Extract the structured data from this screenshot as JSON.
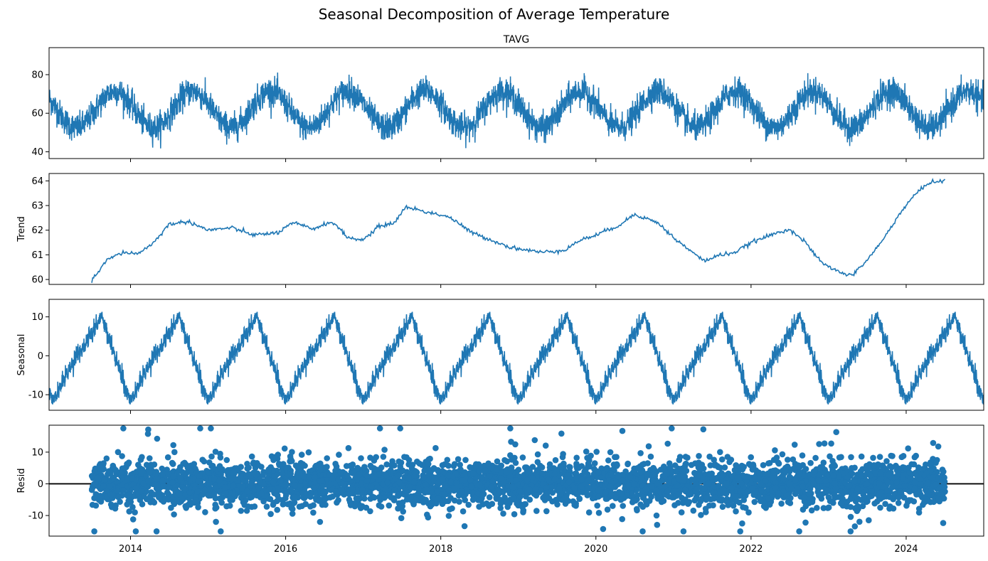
{
  "figure": {
    "suptitle": "Seasonal Decomposition of Average Temperature"
  },
  "chart_data": [
    {
      "type": "line",
      "title": "TAVG",
      "xlabel": "",
      "ylabel": "",
      "xlim": [
        2012.95,
        2025.0
      ],
      "ylim": [
        36.5,
        94
      ],
      "yticks": [
        40,
        60,
        80
      ],
      "xticks": [
        2014,
        2016,
        2018,
        2020,
        2022,
        2024
      ],
      "series": [
        {
          "color": "#1f77b4",
          "kind": "seasonal_daily",
          "x_start": 2012.95,
          "x_end": 2025.0,
          "mean": 62,
          "amplitude": 9.5,
          "noise": 6.5
        }
      ]
    },
    {
      "type": "line",
      "title": "",
      "xlabel": "",
      "ylabel": "Trend",
      "xlim": [
        2012.95,
        2025.0
      ],
      "ylim": [
        59.8,
        64.3
      ],
      "yticks": [
        60,
        61,
        62,
        63,
        64
      ],
      "xticks": [
        2014,
        2016,
        2018,
        2020,
        2022,
        2024
      ],
      "series": [
        {
          "color": "#1f77b4",
          "x": [
            2013.5,
            2013.7,
            2013.9,
            2014.1,
            2014.3,
            2014.5,
            2014.75,
            2015.0,
            2015.3,
            2015.6,
            2015.9,
            2016.1,
            2016.35,
            2016.6,
            2016.8,
            2017.0,
            2017.2,
            2017.4,
            2017.55,
            2017.8,
            2018.1,
            2018.4,
            2018.65,
            2018.9,
            2019.1,
            2019.3,
            2019.6,
            2019.8,
            2020.0,
            2020.3,
            2020.5,
            2020.8,
            2021.0,
            2021.2,
            2021.4,
            2021.6,
            2021.8,
            2022.0,
            2022.3,
            2022.5,
            2022.7,
            2022.9,
            2023.1,
            2023.3,
            2023.5,
            2023.7,
            2023.9,
            2024.1,
            2024.3,
            2024.5
          ],
          "values": [
            59.95,
            60.8,
            61.1,
            61.05,
            61.5,
            62.25,
            62.35,
            62.0,
            62.1,
            61.8,
            61.9,
            62.3,
            62.05,
            62.35,
            61.7,
            61.6,
            62.15,
            62.3,
            62.95,
            62.75,
            62.55,
            61.9,
            61.6,
            61.3,
            61.2,
            61.1,
            61.2,
            61.6,
            61.8,
            62.2,
            62.65,
            62.3,
            61.7,
            61.2,
            60.75,
            61.0,
            61.1,
            61.5,
            61.85,
            62.05,
            61.5,
            60.7,
            60.35,
            60.15,
            60.8,
            61.6,
            62.6,
            63.4,
            63.95,
            64.0
          ]
        }
      ]
    },
    {
      "type": "line",
      "title": "",
      "xlabel": "",
      "ylabel": "Seasonal",
      "xlim": [
        2012.95,
        2025.0
      ],
      "ylim": [
        -14,
        14.5
      ],
      "yticks": [
        -10,
        0,
        10
      ],
      "xticks": [
        2014,
        2016,
        2018,
        2020,
        2022,
        2024
      ],
      "series": [
        {
          "color": "#1f77b4",
          "kind": "seasonal_pattern",
          "x_start": 2012.95,
          "x_end": 2025.0,
          "max": 13,
          "min": -12.5
        }
      ]
    },
    {
      "type": "scatter",
      "title": "",
      "xlabel": "",
      "ylabel": "Resid",
      "xlim": [
        2012.95,
        2025.0
      ],
      "ylim": [
        -16.5,
        18.5
      ],
      "yticks": [
        -10,
        0,
        10
      ],
      "xticks": [
        2014,
        2016,
        2018,
        2020,
        2022,
        2024
      ],
      "series": [
        {
          "color": "#1f77b4",
          "kind": "residual_points",
          "x_start": 2013.5,
          "x_end": 2024.5,
          "spread": 4.5,
          "min": -15,
          "max": 17.5
        }
      ]
    }
  ]
}
